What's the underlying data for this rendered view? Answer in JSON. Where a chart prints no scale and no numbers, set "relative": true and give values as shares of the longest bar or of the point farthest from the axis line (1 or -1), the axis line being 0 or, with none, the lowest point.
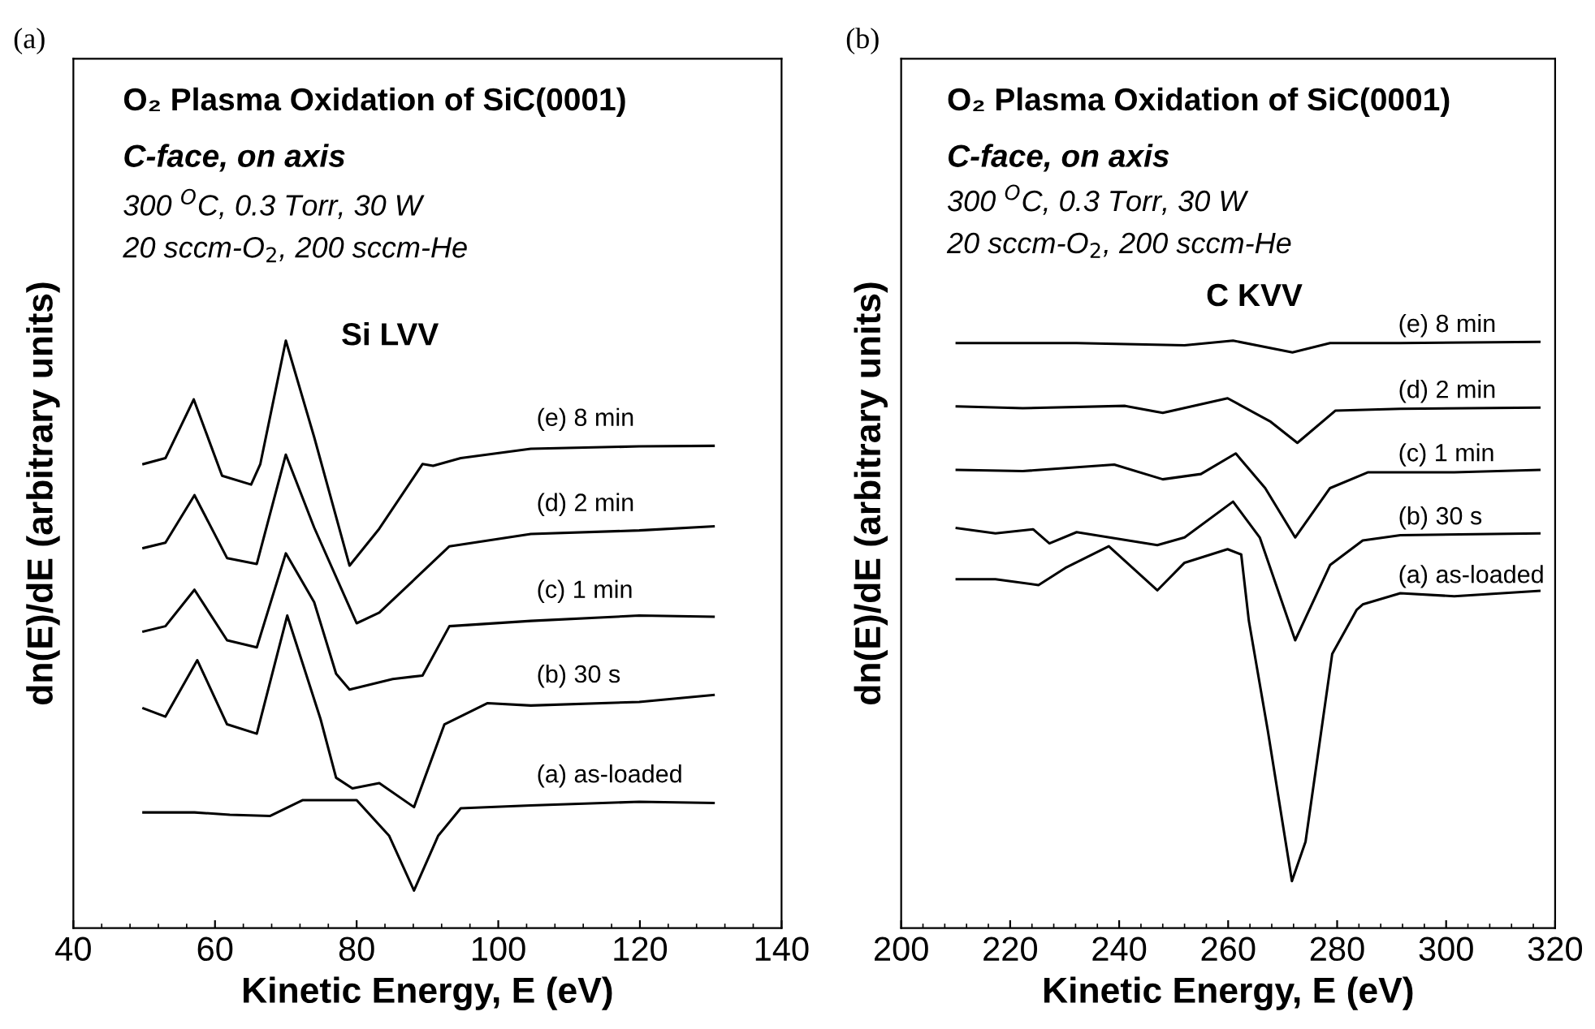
{
  "chart_data": [
    {
      "type": "line",
      "relative": true,
      "title": "O₂ Plasma Oxidation of SiC(0001)",
      "subtitle": "C-face, on axis",
      "xlabel": "Kinetic Energy, E (eV)",
      "ylabel": "dn(E)/dE (arbitrary units)",
      "xlim": [
        40,
        140
      ],
      "xticks": [
        40,
        60,
        80,
        100,
        120,
        140
      ],
      "grid": false,
      "legend": false,
      "marker": "none",
      "line_style": "solid",
      "annotations": [
        "(a)",
        "300 $^{O}$C, 0.3 Torr, 30 W",
        "20 sccm-O$_{2}$, 200 sccm-He",
        "Si LVV"
      ],
      "series": [
        {
          "name": "(e) 8 min",
          "color": "#000000",
          "x": [
            49.9,
            53.0,
            57.0,
            61.0,
            65.1,
            66.4,
            70.0,
            74.0,
            79.0,
            83.2,
            89.3,
            90.8,
            94.7,
            104.6,
            119.9,
            130.4
          ],
          "values": [
            0.79,
            0.8,
            0.9,
            0.77,
            0.755,
            0.79,
            1.0,
            0.836,
            0.617,
            0.68,
            0.79,
            0.787,
            0.8,
            0.816,
            0.82,
            0.821
          ]
        },
        {
          "name": "(d) 2 min",
          "color": "#000000",
          "x": [
            49.9,
            53.0,
            57.1,
            61.7,
            65.9,
            70.0,
            74.0,
            80.0,
            83.2,
            93.1,
            104.6,
            119.9,
            130.4
          ],
          "values": [
            0.647,
            0.656,
            0.737,
            0.63,
            0.62,
            0.806,
            0.682,
            0.519,
            0.537,
            0.65,
            0.671,
            0.677,
            0.684
          ]
        },
        {
          "name": "(c) 1 min",
          "color": "#000000",
          "x": [
            49.9,
            53.0,
            57.1,
            61.7,
            65.9,
            70.0,
            74.0,
            77.1,
            79.0,
            85.1,
            89.3,
            93.1,
            104.6,
            119.9,
            130.4
          ],
          "values": [
            0.505,
            0.514,
            0.576,
            0.49,
            0.478,
            0.638,
            0.555,
            0.433,
            0.406,
            0.424,
            0.43,
            0.514,
            0.523,
            0.532,
            0.53
          ]
        },
        {
          "name": "(b) 30 s",
          "color": "#000000",
          "x": [
            49.9,
            53.0,
            57.5,
            61.7,
            65.9,
            70.2,
            74.9,
            77.1,
            79.4,
            83.2,
            88.1,
            92.4,
            98.5,
            104.6,
            119.9,
            130.4
          ],
          "values": [
            0.374,
            0.36,
            0.456,
            0.347,
            0.331,
            0.532,
            0.356,
            0.256,
            0.238,
            0.247,
            0.206,
            0.347,
            0.383,
            0.379,
            0.385,
            0.397
          ]
        },
        {
          "name": "(a) as-loaded",
          "color": "#000000",
          "x": [
            49.9,
            57.1,
            62.1,
            67.8,
            72.4,
            80.0,
            84.6,
            88.1,
            91.5,
            94.7,
            104.6,
            119.9,
            130.4
          ],
          "values": [
            0.197,
            0.197,
            0.193,
            0.191,
            0.218,
            0.218,
            0.157,
            0.064,
            0.157,
            0.204,
            0.209,
            0.215,
            0.213
          ]
        }
      ]
    },
    {
      "type": "line",
      "relative": true,
      "title": "O₂ Plasma Oxidation of SiC(0001)",
      "subtitle": "C-face, on axis",
      "xlabel": "Kinetic Energy, E (eV)",
      "ylabel": "dn(E)/dE (arbitrary units)",
      "xlim": [
        200,
        320
      ],
      "xticks": [
        200,
        220,
        240,
        260,
        280,
        300,
        320
      ],
      "grid": false,
      "legend": false,
      "marker": "none",
      "line_style": "solid",
      "annotations": [
        "(b)",
        "300 $^{O}$C, 0.3 Torr, 30 W",
        "20 sccm-O$_{2}$, 200 sccm-He",
        "C KVV"
      ],
      "series": [
        {
          "name": "(e) 8 min",
          "color": "#000000",
          "x": [
            210.2,
            232.2,
            252.0,
            260.9,
            271.8,
            278.7,
            291.6,
            317.1
          ],
          "values": [
            0.996,
            0.996,
            0.992,
            1.0,
            0.98,
            0.996,
            0.996,
            0.998
          ]
        },
        {
          "name": "(d) 2 min",
          "color": "#000000",
          "x": [
            210.2,
            222.3,
            241.1,
            248.0,
            259.9,
            267.8,
            272.7,
            279.7,
            291.6,
            317.1
          ],
          "values": [
            0.888,
            0.885,
            0.889,
            0.877,
            0.902,
            0.862,
            0.826,
            0.881,
            0.884,
            0.886
          ]
        },
        {
          "name": "(c) 1 min",
          "color": "#000000",
          "x": [
            210.2,
            222.3,
            239.1,
            248.0,
            255.0,
            261.4,
            266.8,
            272.3,
            278.7,
            285.7,
            301.5,
            317.1
          ],
          "values": [
            0.78,
            0.778,
            0.789,
            0.764,
            0.773,
            0.808,
            0.749,
            0.665,
            0.749,
            0.776,
            0.776,
            0.78
          ]
        },
        {
          "name": "(b) 30 s",
          "color": "#000000",
          "x": [
            210.2,
            217.3,
            224.2,
            227.2,
            232.2,
            247.0,
            252.0,
            260.9,
            265.8,
            272.3,
            278.7,
            284.7,
            291.6,
            317.1
          ],
          "values": [
            0.681,
            0.672,
            0.679,
            0.655,
            0.674,
            0.652,
            0.665,
            0.726,
            0.665,
            0.49,
            0.618,
            0.66,
            0.669,
            0.672
          ]
        },
        {
          "name": "(a) as-loaded",
          "color": "#000000",
          "x": [
            210.2,
            217.3,
            225.2,
            230.1,
            238.1,
            247.0,
            252.0,
            259.9,
            262.4,
            263.8,
            267.3,
            271.7,
            274.2,
            279.1,
            283.6,
            284.7,
            291.6,
            301.5,
            317.1
          ],
          "values": [
            0.594,
            0.594,
            0.584,
            0.613,
            0.65,
            0.575,
            0.622,
            0.645,
            0.636,
            0.523,
            0.335,
            0.08,
            0.147,
            0.467,
            0.542,
            0.551,
            0.57,
            0.565,
            0.574
          ]
        }
      ]
    }
  ]
}
